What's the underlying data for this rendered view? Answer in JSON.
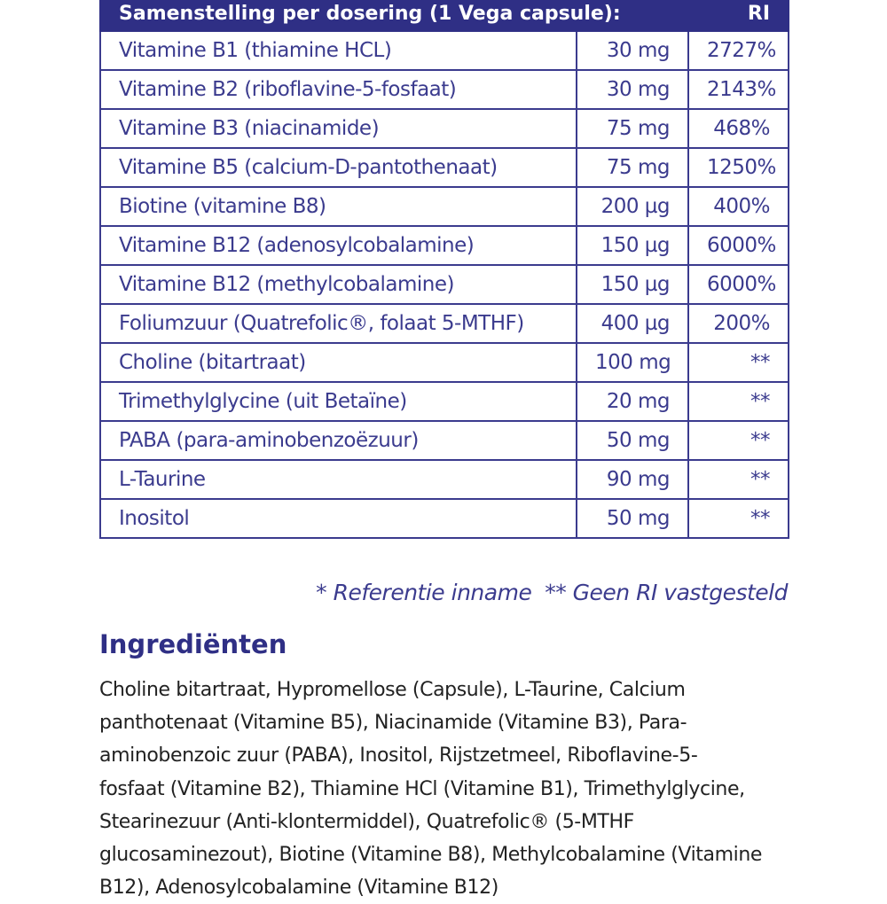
{
  "table": {
    "header": [
      "Samenstelling per dosering (1 Vega capsule):",
      "RI"
    ],
    "rows": [
      [
        "Vitamine B1 (thiamine HCL)",
        "30 mg",
        "2727%"
      ],
      [
        "Vitamine B2 (riboflavine-5-fosfaat)",
        "30 mg",
        "2143%"
      ],
      [
        "Vitamine B3 (niacinamide)",
        "75 mg",
        "468%"
      ],
      [
        "Vitamine B5 (calcium-D-pantothenaat)",
        "75 mg",
        "1250%"
      ],
      [
        "Biotine (vitamine B8)",
        "200 µg",
        "400%"
      ],
      [
        "Vitamine B12 (adenosylcobalamine)",
        "150 µg",
        "6000%"
      ],
      [
        "Vitamine B12 (methylcobalamine)",
        "150 µg",
        "6000%"
      ],
      [
        "Foliumzuur (Quatrefolic®, folaat 5-MTHF)",
        "400 µg",
        "200%"
      ],
      [
        "Choline (bitartraat)",
        "100 mg",
        "**"
      ],
      [
        "Trimethylglycine (uit Betaïne)",
        "20 mg",
        "**"
      ],
      [
        "PABA (para-aminobenzoëzuur)",
        "50 mg",
        "**"
      ],
      [
        "L-Taurine",
        "90 mg",
        "**"
      ],
      [
        "Inositol",
        "50 mg",
        "**"
      ]
    ],
    "footnote": "* Referentie inname  ** Geen RI vastgesteld"
  },
  "ingredients": {
    "title": "Ingrediënten",
    "lines": [
      "Choline bitartraat, Hypromellose (Capsule), L-Taurine, Calcium",
      "panthotenaat (Vitamine B5), Niacinamide (Vitamine B3), Para-",
      "aminobenzoic zuur (PABA), Inositol, Rijstzetmeel, Riboflavine-5-",
      "fosfaat (Vitamine B2), Thiamine HCl (Vitamine B1), Trimethylglycine,",
      "Stearinezuur (Anti-klontermiddel), Quatrefolic® (5-MTHF",
      "glucosaminezout), Biotine (Vitamine B8), Methylcobalamine (Vitamine",
      "B12), Adenosylcobalamine (Vitamine B12)"
    ]
  }
}
